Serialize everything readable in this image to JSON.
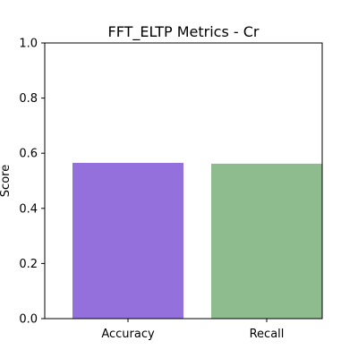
{
  "chart_data": {
    "type": "bar",
    "title": "FFT_ELTP Metrics - Cr",
    "xlabel": "",
    "ylabel": "Score",
    "categories": [
      "Accuracy",
      "Recall"
    ],
    "values": [
      0.565,
      0.562
    ],
    "colors": [
      "#9370db",
      "#8fbc8f"
    ],
    "ylim": [
      0,
      1.0
    ],
    "yticks": [
      "0.0",
      "0.2",
      "0.4",
      "0.6",
      "0.8",
      "1.0"
    ],
    "grid": false,
    "legend": "none"
  }
}
